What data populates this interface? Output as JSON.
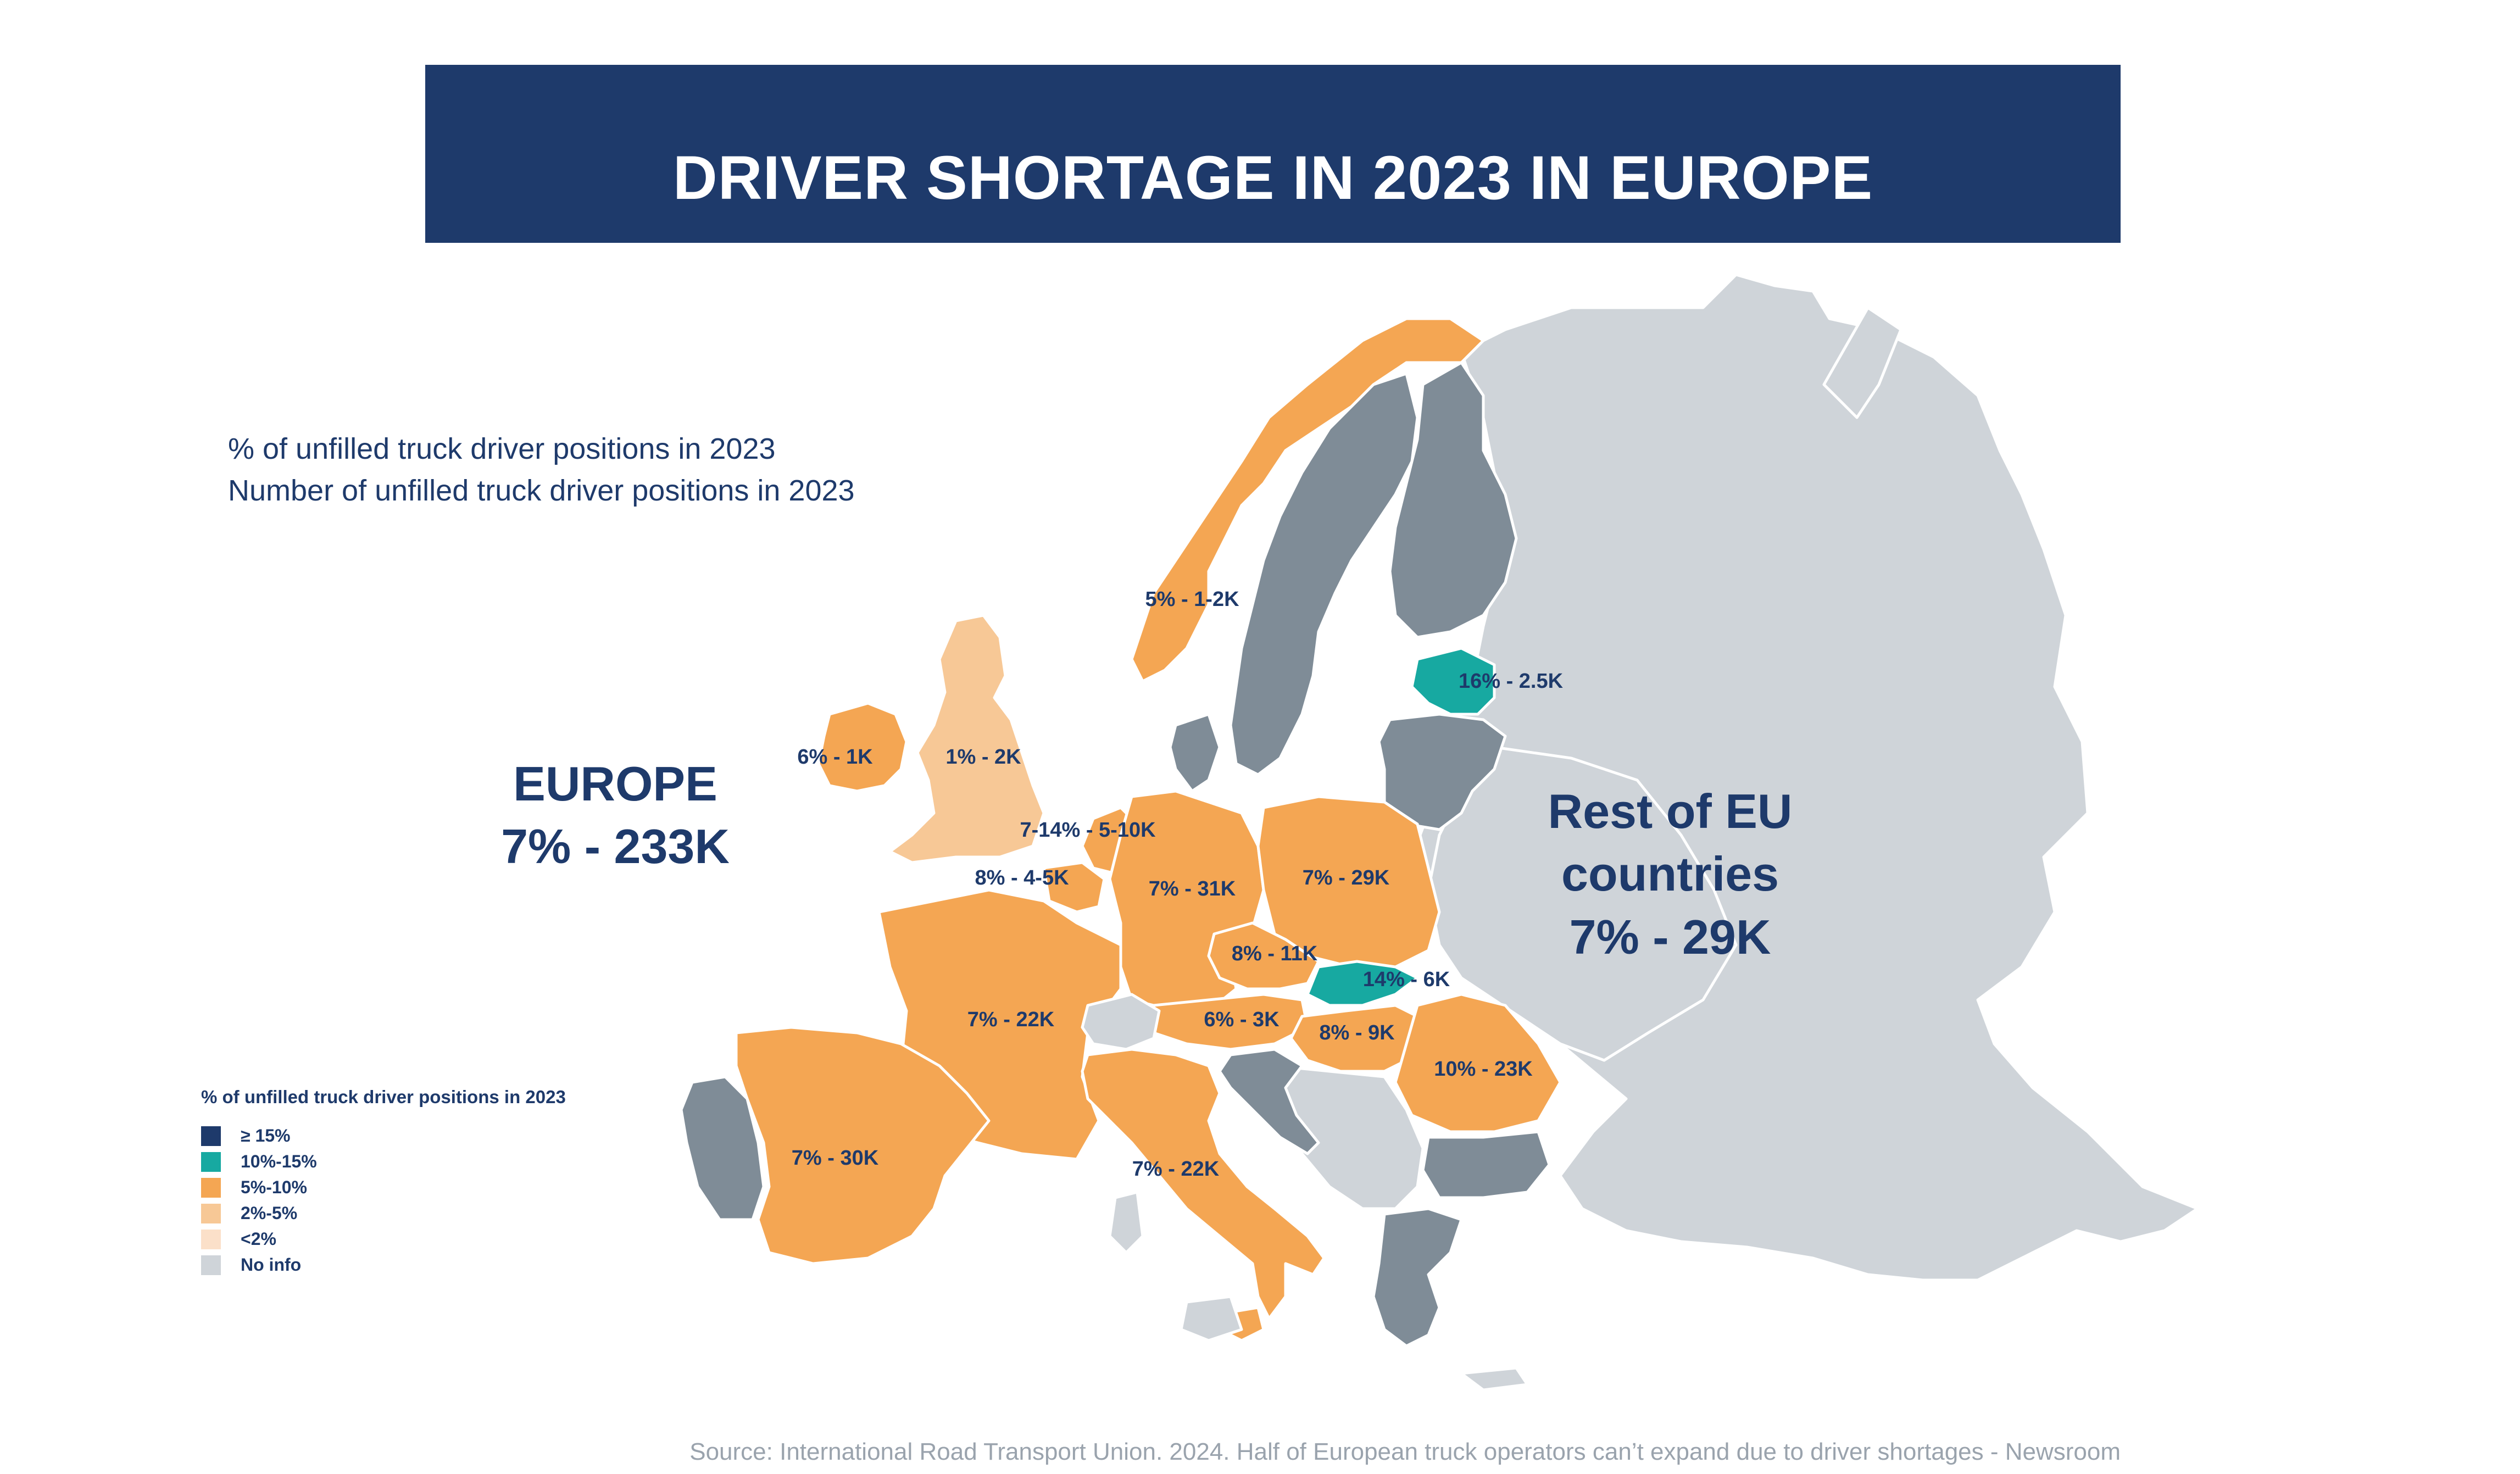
{
  "title": "DRIVER SHORTAGE IN 2023 IN EUROPE",
  "subtitle_lines": [
    "% of unfilled truck driver positions in 2023",
    "Number of unfilled truck driver positions in 2023"
  ],
  "europe_total": {
    "name": "EUROPE",
    "value": "7% - 233K"
  },
  "rest_of_eu": {
    "line1": "Rest of EU",
    "line2": "countries",
    "value": "7% - 29K"
  },
  "legend": {
    "title": "% of unfilled truck driver positions in 2023",
    "items": [
      {
        "label": "≥ 15%",
        "color": "#1e3a6b"
      },
      {
        "label": "10%-15%",
        "color": "#17a9a1"
      },
      {
        "label": "5%-10%",
        "color": "#f4a653"
      },
      {
        "label": "2%-5%",
        "color": "#f7c896"
      },
      {
        "label": "<2%",
        "color": "#fbe0c9"
      },
      {
        "label": "No info",
        "color": "#cfd4d9"
      }
    ]
  },
  "country_labels": {
    "norway": "5% - 1-2K",
    "estonia": "16% - 2.5K",
    "ireland": "6% - 1K",
    "uk": "1% - 2K",
    "netherlands": "7-14% - 5-10K",
    "belgium": "8% - 4-5K",
    "germany": "7% - 31K",
    "poland": "7% - 29K",
    "czechia": "8% - 11K",
    "slovakia": "14% - 6K",
    "france": "7% - 22K",
    "austria": "6% - 3K",
    "hungary": "8% - 9K",
    "romania": "10% - 23K",
    "spain": "7% - 30K",
    "italy": "7% - 22K"
  },
  "source": "Source: International Road Transport Union. 2024. Half of European truck operators can’t expand due to driver shortages - Newsroom",
  "colors": {
    "banner": "#1e3a6b",
    "text": "#1e3a6b",
    "orange": "#f4a653",
    "light_orange": "#f7c896",
    "teal": "#17a9a1",
    "dark_grey": "#7f8c97",
    "light_grey": "#cfd4d9"
  }
}
